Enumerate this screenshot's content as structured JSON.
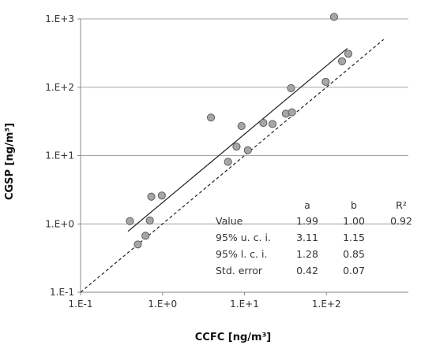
{
  "chart_data": {
    "type": "scatter",
    "xlabel": "CCFC [ng/m³]",
    "ylabel": "CGSP [ng/m³]",
    "x_scale": "log",
    "y_scale": "log",
    "xlim": [
      0.1,
      1000
    ],
    "ylim": [
      0.1,
      1000
    ],
    "x_ticks": [
      {
        "value": 0.1,
        "label": "1.E-1"
      },
      {
        "value": 1,
        "label": "1.E+0"
      },
      {
        "value": 10,
        "label": "1.E+1"
      },
      {
        "value": 100,
        "label": "1.E+2"
      }
    ],
    "y_ticks": [
      {
        "value": 0.1,
        "label": "1.E-1"
      },
      {
        "value": 1,
        "label": "1.E+0"
      },
      {
        "value": 10,
        "label": "1.E+1"
      },
      {
        "value": 100,
        "label": "1.E+2"
      },
      {
        "value": 1000,
        "label": "1.E+3"
      }
    ],
    "grid": "horizontal",
    "points": [
      {
        "x": 0.4,
        "y": 1.1
      },
      {
        "x": 0.5,
        "y": 0.5
      },
      {
        "x": 0.62,
        "y": 0.67
      },
      {
        "x": 0.7,
        "y": 1.12
      },
      {
        "x": 0.73,
        "y": 2.5
      },
      {
        "x": 0.98,
        "y": 2.6
      },
      {
        "x": 3.9,
        "y": 36
      },
      {
        "x": 6.3,
        "y": 8.1
      },
      {
        "x": 8.0,
        "y": 13.5
      },
      {
        "x": 9.2,
        "y": 27
      },
      {
        "x": 11,
        "y": 12
      },
      {
        "x": 17,
        "y": 30
      },
      {
        "x": 22,
        "y": 29
      },
      {
        "x": 32,
        "y": 41
      },
      {
        "x": 38,
        "y": 43
      },
      {
        "x": 37,
        "y": 97
      },
      {
        "x": 98,
        "y": 120
      },
      {
        "x": 124,
        "y": 1070
      },
      {
        "x": 155,
        "y": 240
      },
      {
        "x": 185,
        "y": 310
      }
    ],
    "fit_line": {
      "x": [
        0.38,
        180
      ],
      "y": [
        0.78,
        370
      ]
    },
    "reference_line": {
      "x": [
        0.1,
        1000
      ],
      "y": [
        0.1,
        1000
      ]
    },
    "stats_table": {
      "columns": [
        "a",
        "b",
        "R²"
      ],
      "rows": [
        {
          "label": "Value",
          "values": [
            "1.99",
            "1.00",
            "0.92"
          ]
        },
        {
          "label": "95% u. c. i.",
          "values": [
            "3.11",
            "1.15",
            ""
          ]
        },
        {
          "label": "95% l. c. i.",
          "values": [
            "1.28",
            "0.85",
            ""
          ]
        },
        {
          "label": "Std. error",
          "values": [
            "0.42",
            "0.07",
            ""
          ]
        }
      ]
    },
    "colors": {
      "marker_fill": "#a6a6a6",
      "marker_stroke": "#555555",
      "fit_line": "#222222",
      "reference_line": "#222222",
      "grid": "#a6a6a6",
      "axis": "#888888"
    }
  }
}
